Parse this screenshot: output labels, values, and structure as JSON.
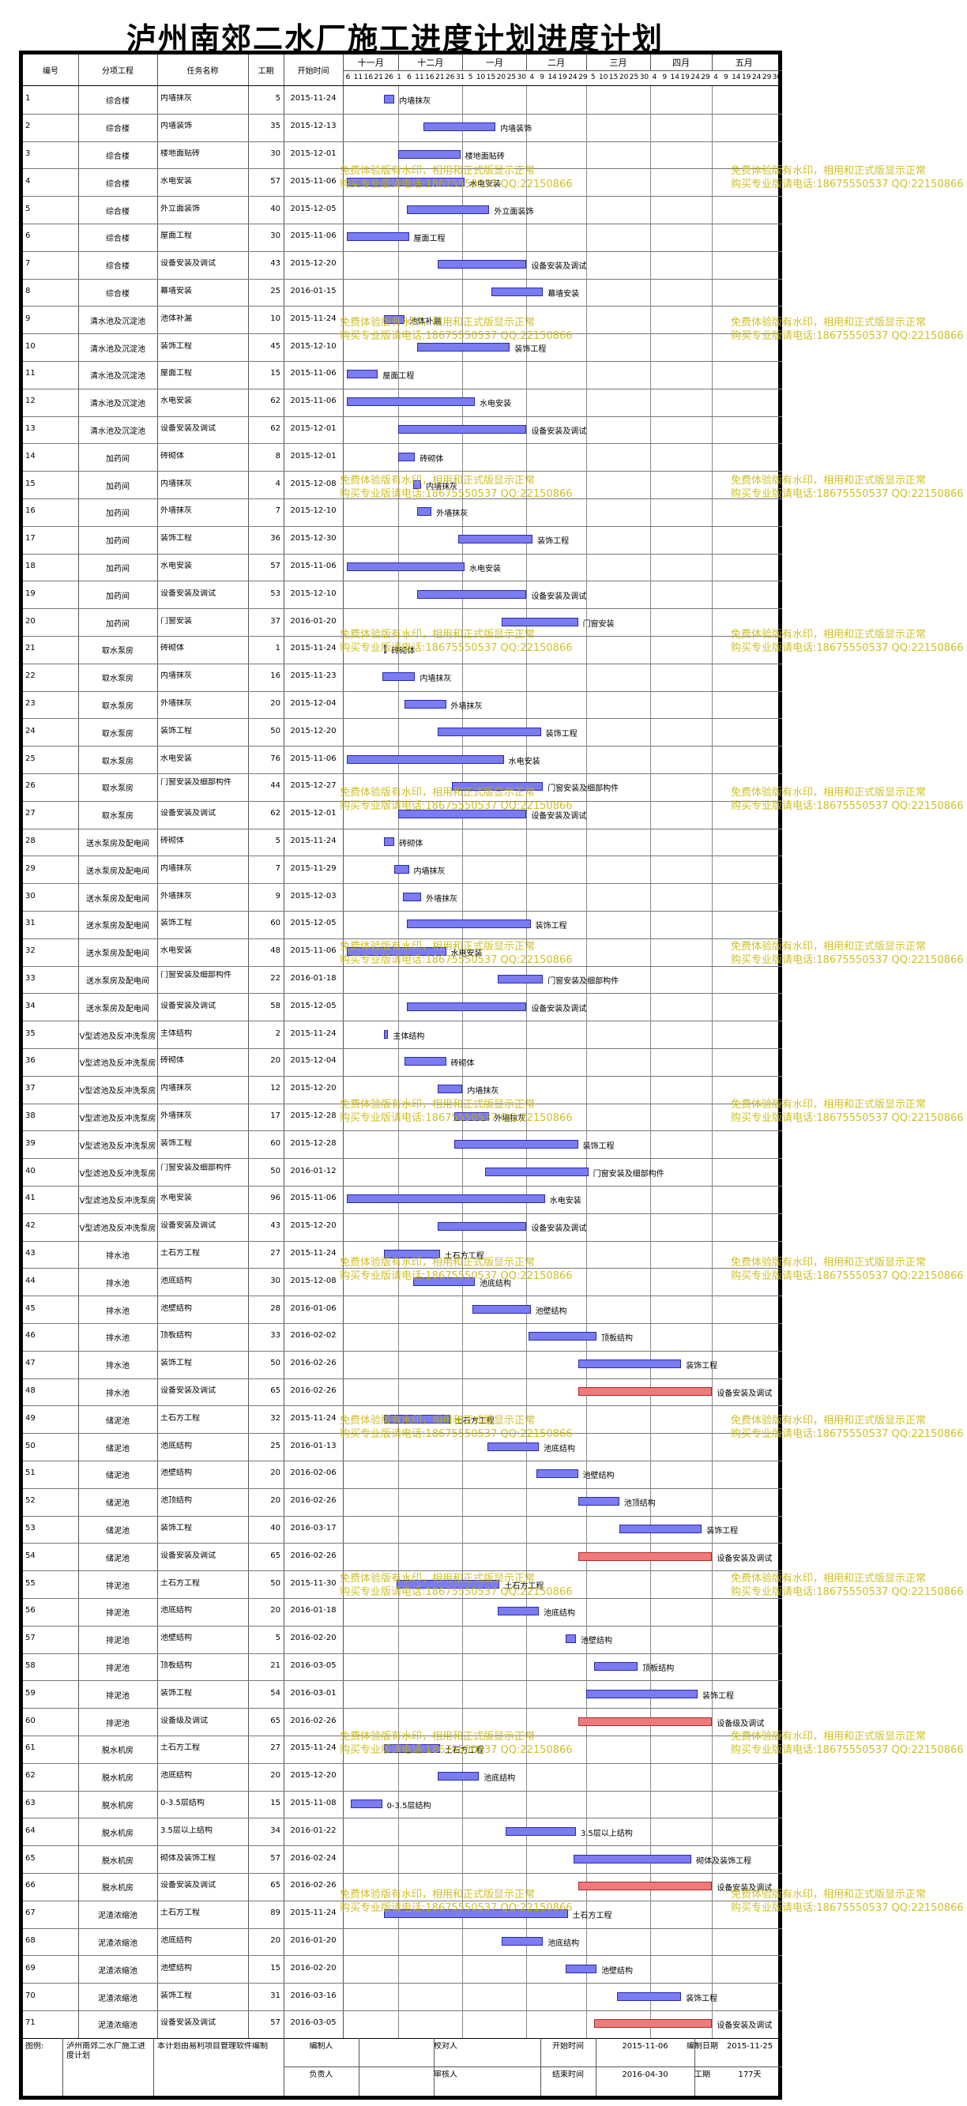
{
  "title": "泸州南郊二水厂施工进度计划进度计划",
  "columns": [
    "编号",
    "分项工程",
    "任务名称",
    "工期",
    "开始时间"
  ],
  "months": [
    "十一月",
    "十二月",
    "一月",
    "二月",
    "三月",
    "四月",
    "五月"
  ],
  "day_ticks": [
    "6",
    "11",
    "16",
    "21",
    "26",
    "1",
    "6",
    "11",
    "16",
    "21",
    "26",
    "31",
    "5",
    "10",
    "15",
    "20",
    "25",
    "30",
    "4",
    "9",
    "14",
    "19",
    "24",
    "29",
    "5",
    "10",
    "15",
    "20",
    "25",
    "30",
    "4",
    "9",
    "14",
    "19",
    "24",
    "29",
    "4",
    "9",
    "14",
    "19",
    "24",
    "29",
    "30"
  ],
  "watermark": [
    "免费体验版有水印，相用和正式版显示正常",
    "购买专业版请电话:18675550537 QQ:22150866"
  ],
  "tasks": [
    {
      "no": "1",
      "part": "综合楼",
      "name": "内墙抹灰",
      "days": 5,
      "start": "2015-11-24",
      "label": "内墙抹灰"
    },
    {
      "no": "2",
      "part": "综合楼",
      "name": "内墙装饰",
      "days": 35,
      "start": "2015-12-13",
      "label": "内墙装饰"
    },
    {
      "no": "3",
      "part": "综合楼",
      "name": "楼地面贴砖",
      "days": 30,
      "start": "2015-12-01",
      "label": "楼地面贴砖"
    },
    {
      "no": "4",
      "part": "综合楼",
      "name": "水电安装",
      "days": 57,
      "start": "2015-11-06",
      "label": "水电安装"
    },
    {
      "no": "5",
      "part": "综合楼",
      "name": "外立面装饰",
      "days": 40,
      "start": "2015-12-05",
      "label": "外立面装饰"
    },
    {
      "no": "6",
      "part": "综合楼",
      "name": "屋面工程",
      "days": 30,
      "start": "2015-11-06",
      "label": "屋面工程"
    },
    {
      "no": "7",
      "part": "综合楼",
      "name": "设备安装及调试",
      "days": 43,
      "start": "2015-12-20",
      "label": "设备安装及调试"
    },
    {
      "no": "8",
      "part": "综合楼",
      "name": "幕墙安装",
      "days": 25,
      "start": "2016-01-15",
      "label": "幕墙安装"
    },
    {
      "no": "9",
      "part": "清水池及沉淀池",
      "name": "池体补漏",
      "days": 10,
      "start": "2015-11-24",
      "label": "池体补漏"
    },
    {
      "no": "10",
      "part": "清水池及沉淀池",
      "name": "装饰工程",
      "days": 45,
      "start": "2015-12-10",
      "label": "装饰工程"
    },
    {
      "no": "11",
      "part": "清水池及沉淀池",
      "name": "屋面工程",
      "days": 15,
      "start": "2015-11-06",
      "label": "屋面工程"
    },
    {
      "no": "12",
      "part": "清水池及沉淀池",
      "name": "水电安装",
      "days": 62,
      "start": "2015-11-06",
      "label": "水电安装"
    },
    {
      "no": "13",
      "part": "清水池及沉淀池",
      "name": "设备安装及调试",
      "days": 62,
      "start": "2015-12-01",
      "label": "设备安装及调试"
    },
    {
      "no": "14",
      "part": "加药间",
      "name": "砖砌体",
      "days": 8,
      "start": "2015-12-01",
      "label": "砖砌体"
    },
    {
      "no": "15",
      "part": "加药间",
      "name": "内墙抹灰",
      "days": 4,
      "start": "2015-12-08",
      "label": "内墙抹灰"
    },
    {
      "no": "16",
      "part": "加药间",
      "name": "外墙抹灰",
      "days": 7,
      "start": "2015-12-10",
      "label": "外墙抹灰"
    },
    {
      "no": "17",
      "part": "加药间",
      "name": "装饰工程",
      "days": 36,
      "start": "2015-12-30",
      "label": "装饰工程"
    },
    {
      "no": "18",
      "part": "加药间",
      "name": "水电安装",
      "days": 57,
      "start": "2015-11-06",
      "label": "水电安装"
    },
    {
      "no": "19",
      "part": "加药间",
      "name": "设备安装及调试",
      "days": 53,
      "start": "2015-12-10",
      "label": "设备安装及调试"
    },
    {
      "no": "20",
      "part": "加药间",
      "name": "门窗安装",
      "days": 37,
      "start": "2016-01-20",
      "label": "门窗安装"
    },
    {
      "no": "21",
      "part": "取水泵房",
      "name": "砖砌体",
      "days": 1,
      "start": "2015-11-24",
      "label": "砖砌体"
    },
    {
      "no": "22",
      "part": "取水泵房",
      "name": "内墙抹灰",
      "days": 16,
      "start": "2015-11-23",
      "label": "内墙抹灰"
    },
    {
      "no": "23",
      "part": "取水泵房",
      "name": "外墙抹灰",
      "days": 20,
      "start": "2015-12-04",
      "label": "外墙抹灰"
    },
    {
      "no": "24",
      "part": "取水泵房",
      "name": "装饰工程",
      "days": 50,
      "start": "2015-12-20",
      "label": "装饰工程"
    },
    {
      "no": "25",
      "part": "取水泵房",
      "name": "水电安装",
      "days": 76,
      "start": "2015-11-06",
      "label": "水电安装"
    },
    {
      "no": "26",
      "part": "取水泵房",
      "name": "门窗安装及细部构件",
      "days": 44,
      "start": "2015-12-27",
      "label": "门窗安装及细部构件"
    },
    {
      "no": "27",
      "part": "取水泵房",
      "name": "设备安装及调试",
      "days": 62,
      "start": "2015-12-01",
      "label": "设备安装及调试"
    },
    {
      "no": "28",
      "part": "送水泵房及配电间",
      "name": "砖砌体",
      "days": 5,
      "start": "2015-11-24",
      "label": "砖砌体"
    },
    {
      "no": "29",
      "part": "送水泵房及配电间",
      "name": "内墙抹灰",
      "days": 7,
      "start": "2015-11-29",
      "label": "内墙抹灰"
    },
    {
      "no": "30",
      "part": "送水泵房及配电间",
      "name": "外墙抹灰",
      "days": 9,
      "start": "2015-12-03",
      "label": "外墙抹灰"
    },
    {
      "no": "31",
      "part": "送水泵房及配电间",
      "name": "装饰工程",
      "days": 60,
      "start": "2015-12-05",
      "label": "装饰工程"
    },
    {
      "no": "32",
      "part": "送水泵房及配电间",
      "name": "水电安装",
      "days": 48,
      "start": "2015-11-06",
      "label": "水电安装"
    },
    {
      "no": "33",
      "part": "送水泵房及配电间",
      "name": "门窗安装及细部构件",
      "days": 22,
      "start": "2016-01-18",
      "label": "门窗安装及细部构件"
    },
    {
      "no": "34",
      "part": "送水泵房及配电间",
      "name": "设备安装及调试",
      "days": 58,
      "start": "2015-12-05",
      "label": "设备安装及调试"
    },
    {
      "no": "35",
      "part": "V型滤池及反冲洗泵房",
      "name": "主体结构",
      "days": 2,
      "start": "2015-11-24",
      "label": "主体结构"
    },
    {
      "no": "36",
      "part": "V型滤池及反冲洗泵房",
      "name": "砖砌体",
      "days": 20,
      "start": "2015-12-04",
      "label": "砖砌体"
    },
    {
      "no": "37",
      "part": "V型滤池及反冲洗泵房",
      "name": "内墙抹灰",
      "days": 12,
      "start": "2015-12-20",
      "label": "内墙抹灰"
    },
    {
      "no": "38",
      "part": "V型滤池及反冲洗泵房",
      "name": "外墙抹灰",
      "days": 17,
      "start": "2015-12-28",
      "label": "外墙抹灰"
    },
    {
      "no": "39",
      "part": "V型滤池及反冲洗泵房",
      "name": "装饰工程",
      "days": 60,
      "start": "2015-12-28",
      "label": "装饰工程"
    },
    {
      "no": "40",
      "part": "V型滤池及反冲洗泵房",
      "name": "门窗安装及细部构件",
      "days": 50,
      "start": "2016-01-12",
      "label": "门窗安装及细部构件"
    },
    {
      "no": "41",
      "part": "V型滤池及反冲洗泵房",
      "name": "水电安装",
      "days": 96,
      "start": "2015-11-06",
      "label": "水电安装"
    },
    {
      "no": "42",
      "part": "V型滤池及反冲洗泵房",
      "name": "设备安装及调试",
      "days": 43,
      "start": "2015-12-20",
      "label": "设备安装及调试"
    },
    {
      "no": "43",
      "part": "排水池",
      "name": "土石方工程",
      "days": 27,
      "start": "2015-11-24",
      "label": "土石方工程"
    },
    {
      "no": "44",
      "part": "排水池",
      "name": "池底结构",
      "days": 30,
      "start": "2015-12-08",
      "label": "池底结构"
    },
    {
      "no": "45",
      "part": "排水池",
      "name": "池壁结构",
      "days": 28,
      "start": "2016-01-06",
      "label": "池壁结构"
    },
    {
      "no": "46",
      "part": "排水池",
      "name": "顶板结构",
      "days": 33,
      "start": "2016-02-02",
      "label": "顶板结构"
    },
    {
      "no": "47",
      "part": "排水池",
      "name": "装饰工程",
      "days": 50,
      "start": "2016-02-26",
      "label": "装饰工程"
    },
    {
      "no": "48",
      "part": "排水池",
      "name": "设备安装及调试",
      "days": 65,
      "start": "2016-02-26",
      "label": "设备安装及调试",
      "red": true
    },
    {
      "no": "49",
      "part": "储泥池",
      "name": "土石方工程",
      "days": 32,
      "start": "2015-11-24",
      "label": "土石方工程"
    },
    {
      "no": "50",
      "part": "储泥池",
      "name": "池底结构",
      "days": 25,
      "start": "2016-01-13",
      "label": "池底结构"
    },
    {
      "no": "51",
      "part": "储泥池",
      "name": "池壁结构",
      "days": 20,
      "start": "2016-02-06",
      "label": "池壁结构"
    },
    {
      "no": "52",
      "part": "储泥池",
      "name": "池顶结构",
      "days": 20,
      "start": "2016-02-26",
      "label": "池顶结构"
    },
    {
      "no": "53",
      "part": "储泥池",
      "name": "装饰工程",
      "days": 40,
      "start": "2016-03-17",
      "label": "装饰工程"
    },
    {
      "no": "54",
      "part": "储泥池",
      "name": "设备安装及调试",
      "days": 65,
      "start": "2016-02-26",
      "label": "设备安装及调试",
      "red": true
    },
    {
      "no": "55",
      "part": "排泥池",
      "name": "土石方工程",
      "days": 50,
      "start": "2015-11-30",
      "label": "土石方工程"
    },
    {
      "no": "56",
      "part": "排泥池",
      "name": "池底结构",
      "days": 20,
      "start": "2016-01-18",
      "label": "池底结构"
    },
    {
      "no": "57",
      "part": "排泥池",
      "name": "池壁结构",
      "days": 5,
      "start": "2016-02-20",
      "label": "池壁结构"
    },
    {
      "no": "58",
      "part": "排泥池",
      "name": "顶板结构",
      "days": 21,
      "start": "2016-03-05",
      "label": "顶板结构"
    },
    {
      "no": "59",
      "part": "排泥池",
      "name": "装饰工程",
      "days": 54,
      "start": "2016-03-01",
      "label": "装饰工程"
    },
    {
      "no": "60",
      "part": "排泥池",
      "name": "设备级及调试",
      "days": 65,
      "start": "2016-02-26",
      "label": "设备级及调试",
      "red": true
    },
    {
      "no": "61",
      "part": "脱水机房",
      "name": "土石方工程",
      "days": 27,
      "start": "2015-11-24",
      "label": "土石方工程"
    },
    {
      "no": "62",
      "part": "脱水机房",
      "name": "池底结构",
      "days": 20,
      "start": "2015-12-20",
      "label": "池底结构"
    },
    {
      "no": "63",
      "part": "脱水机房",
      "name": "0-3.5层结构",
      "days": 15,
      "start": "2015-11-08",
      "label": "0-3.5层结构"
    },
    {
      "no": "64",
      "part": "脱水机房",
      "name": "3.5层以上结构",
      "days": 34,
      "start": "2016-01-22",
      "label": "3.5层以上结构"
    },
    {
      "no": "65",
      "part": "脱水机房",
      "name": "砌体及装饰工程",
      "days": 57,
      "start": "2016-02-24",
      "label": "砌体及装饰工程"
    },
    {
      "no": "66",
      "part": "脱水机房",
      "name": "设备安装及调试",
      "days": 65,
      "start": "2016-02-26",
      "label": "设备安装及调试",
      "red": true
    },
    {
      "no": "67",
      "part": "泥渣浓缩池",
      "name": "土石方工程",
      "days": 89,
      "start": "2015-11-24",
      "label": "土石方工程"
    },
    {
      "no": "68",
      "part": "泥渣浓缩池",
      "name": "池底结构",
      "days": 20,
      "start": "2016-01-20",
      "label": "池底结构"
    },
    {
      "no": "69",
      "part": "泥渣浓缩池",
      "name": "池壁结构",
      "days": 15,
      "start": "2016-02-20",
      "label": "池壁结构"
    },
    {
      "no": "70",
      "part": "泥渣浓缩池",
      "name": "装饰工程",
      "days": 31,
      "start": "2016-03-16",
      "label": "装饰工程"
    },
    {
      "no": "71",
      "part": "泥渣浓缩池",
      "name": "设备安装及调试",
      "days": 57,
      "start": "2016-03-05",
      "label": "设备安装及调试",
      "red": true
    }
  ],
  "footer": {
    "legend_label": "图例:",
    "project_name": "泸州南郊二水厂施工进度计划",
    "software_note": "本计划由易利项目管理软件编制",
    "editor_label": "编制人",
    "owner_label": "负责人",
    "checker_label": "校对人",
    "reviewer_label": "审核人",
    "start_label": "开始时间",
    "start_value": "2015-11-06",
    "end_label": "结束时间",
    "end_value": "2016-04-30",
    "date_label": "编制日期",
    "date_value": "2015-11-25",
    "duration_label": "工期",
    "duration_value": "177天"
  },
  "colors": {
    "bar": "#7b7bf2",
    "bar_critical": "#f07a7a",
    "watermark": "#c8b400"
  }
}
